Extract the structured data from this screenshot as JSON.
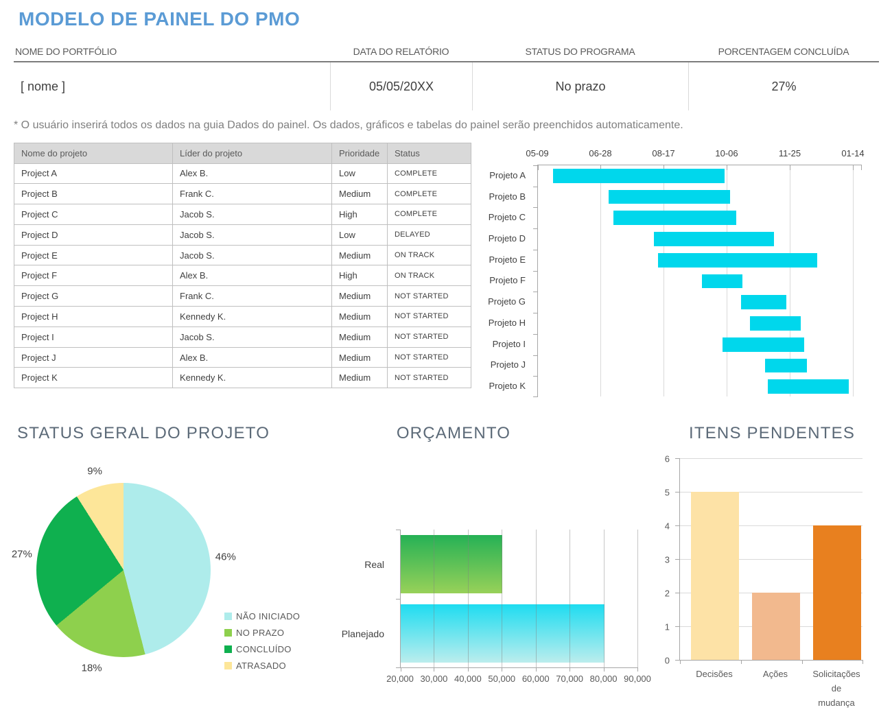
{
  "page": {
    "title": "MODELO DE PAINEL DO PMO",
    "note": "* O usuário inserirá todos os dados na guia Dados do painel.  Os dados, gráficos e tabelas do painel serão preenchidos automaticamente."
  },
  "summary": {
    "columns": [
      {
        "label": "NOME DO PORTFÓLIO",
        "value": "[ nome ]"
      },
      {
        "label": "DATA DO RELATÓRIO",
        "value": "05/05/20XX"
      },
      {
        "label": "STATUS DO PROGRAMA",
        "value": "No prazo"
      },
      {
        "label": "PORCENTAGEM CONCLUÍDA",
        "value": "27%"
      }
    ]
  },
  "project_table": {
    "headers": [
      "Nome do projeto",
      "Líder do projeto",
      "Prioridade",
      "Status"
    ],
    "rows": [
      [
        "Project A",
        "Alex B.",
        "Low",
        "COMPLETE"
      ],
      [
        "Project B",
        "Frank C.",
        "Medium",
        "COMPLETE"
      ],
      [
        "Project C",
        "Jacob S.",
        "High",
        "COMPLETE"
      ],
      [
        "Project D",
        "Jacob S.",
        "Low",
        "DELAYED"
      ],
      [
        "Project E",
        "Jacob S.",
        "Medium",
        "ON TRACK"
      ],
      [
        "Project F",
        "Alex B.",
        "High",
        "ON TRACK"
      ],
      [
        "Project G",
        "Frank C.",
        "Medium",
        "NOT STARTED"
      ],
      [
        "Project H",
        "Kennedy K.",
        "Medium",
        "NOT STARTED"
      ],
      [
        "Project I",
        "Jacob S.",
        "Medium",
        "NOT STARTED"
      ],
      [
        "Project J",
        "Alex B.",
        "Medium",
        "NOT STARTED"
      ],
      [
        "Project K",
        "Kennedy K.",
        "Medium",
        "NOT STARTED"
      ]
    ]
  },
  "chart_data": [
    {
      "type": "gantt",
      "title": "",
      "x_ticks": [
        "05-09",
        "06-28",
        "08-17",
        "10-06",
        "11-25",
        "01-14"
      ],
      "tick_interval_days": 50,
      "axis_max_day": 257,
      "bar_color": "#00d7ec",
      "bars": [
        {
          "name": "Projeto A",
          "start_day": 12,
          "end_day": 148
        },
        {
          "name": "Projeto B",
          "start_day": 56,
          "end_day": 152
        },
        {
          "name": "Projeto C",
          "start_day": 60,
          "end_day": 157
        },
        {
          "name": "Projeto D",
          "start_day": 92,
          "end_day": 187
        },
        {
          "name": "Projeto E",
          "start_day": 95,
          "end_day": 221
        },
        {
          "name": "Projeto F",
          "start_day": 130,
          "end_day": 162
        },
        {
          "name": "Projeto G",
          "start_day": 161,
          "end_day": 197
        },
        {
          "name": "Projeto H",
          "start_day": 168,
          "end_day": 208
        },
        {
          "name": "Projeto I",
          "start_day": 146,
          "end_day": 211
        },
        {
          "name": "Projeto J",
          "start_day": 180,
          "end_day": 213
        },
        {
          "name": "Projeto K",
          "start_day": 182,
          "end_day": 246
        }
      ]
    },
    {
      "type": "pie",
      "title": "STATUS GERAL DO PROJETO",
      "start_angle_deg": 0,
      "direction": "clockwise",
      "legend_position": "bottom-right",
      "slices": [
        {
          "label": "NÃO INICIADO",
          "value": 46,
          "color": "#aeeceb"
        },
        {
          "label": "NO PRAZO",
          "value": 18,
          "color": "#8ed04d"
        },
        {
          "label": "CONCLUÍDO",
          "value": 27,
          "color": "#0fb04f"
        },
        {
          "label": "ATRASADO",
          "value": 9,
          "color": "#fde699"
        }
      ]
    },
    {
      "type": "bar-horizontal",
      "title": "ORÇAMENTO",
      "categories": [
        "Real",
        "Planejado"
      ],
      "values": [
        50000,
        80000
      ],
      "x_min": 20000,
      "x_max": 90000,
      "x_tick_step": 10000,
      "x_tick_labels": [
        "20,000",
        "30,000",
        "40,000",
        "50,000",
        "60,000",
        "70,000",
        "80,000",
        "90,000"
      ],
      "bar_gradients": [
        [
          "#25b155",
          "#98d159"
        ],
        [
          "#1edcf0",
          "#bceded"
        ]
      ]
    },
    {
      "type": "bar",
      "title": "ITENS PENDENTES",
      "categories": [
        "Decisões",
        "Ações",
        "Solicitações de mudança"
      ],
      "values": [
        5,
        2,
        4
      ],
      "colors": [
        "#fde2a6",
        "#f2b98e",
        "#e8801f"
      ],
      "y_min": 0,
      "y_max": 6,
      "y_tick_step": 1
    }
  ]
}
